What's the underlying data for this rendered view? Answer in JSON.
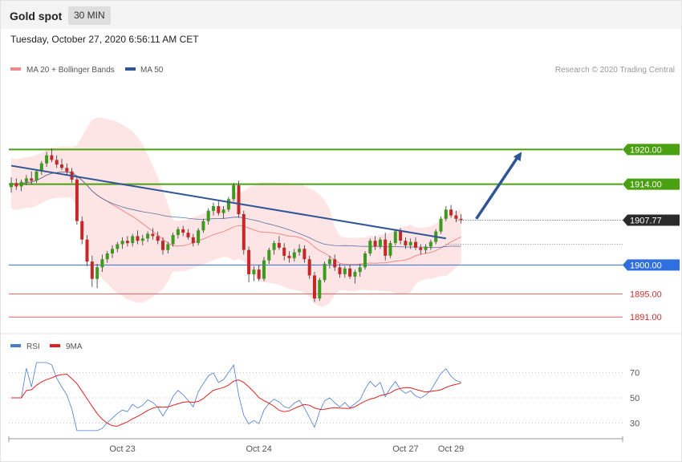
{
  "header": {
    "title": "Gold spot",
    "timeframe": "30 MIN"
  },
  "timestamp": "Tuesday, October 27, 2020 6:56:11 AM CET",
  "legend_main": [
    {
      "label": "MA 20 + Bollinger Bands",
      "color": "#f08a8a"
    },
    {
      "label": "MA 50",
      "color": "#2f5597"
    }
  ],
  "copyright": "Research © 2020 Trading Central",
  "legend_rsi": [
    {
      "label": "RSI",
      "color": "#4a7bd0"
    },
    {
      "label": "9MA",
      "color": "#e02020"
    }
  ],
  "colors": {
    "resistance": "#4aa010",
    "support": "#2f6fe0",
    "minor_support": "#e06060",
    "current": "#2a2a2a",
    "arrow": "#2f5597",
    "band_fill": "#fde0e0"
  },
  "chart_data": {
    "type": "candlestick",
    "levels": [
      {
        "label": "1920.00",
        "value": 1920.0,
        "kind": "resistance"
      },
      {
        "label": "1914.00",
        "value": 1914.0,
        "kind": "resistance"
      },
      {
        "label": "1907.77",
        "value": 1907.77,
        "kind": "current"
      },
      {
        "label": "1900.00",
        "value": 1900.0,
        "kind": "support"
      },
      {
        "label": "1895.00",
        "value": 1895.0,
        "kind": "minor_support"
      },
      {
        "label": "1891.00",
        "value": 1891.0,
        "kind": "minor_support"
      }
    ],
    "price_range": [
      1889.5,
      1932.0
    ],
    "x_labels": [
      {
        "label": "Oct 23",
        "index": 22
      },
      {
        "label": "Oct 24",
        "index": 49
      },
      {
        "label": "Oct 27",
        "index": 78
      },
      {
        "label": "Oct 29",
        "index": 87
      }
    ],
    "bar_count": 90,
    "ohlc": [
      [
        1913.5,
        1915.2,
        1912.5,
        1914.2
      ],
      [
        1914.2,
        1915.0,
        1913.0,
        1913.6
      ],
      [
        1913.6,
        1914.8,
        1912.8,
        1914.4
      ],
      [
        1914.4,
        1915.6,
        1913.8,
        1915.0
      ],
      [
        1915.0,
        1916.2,
        1914.0,
        1914.6
      ],
      [
        1914.6,
        1916.5,
        1914.2,
        1916.2
      ],
      [
        1916.2,
        1918.0,
        1915.6,
        1917.6
      ],
      [
        1917.6,
        1919.6,
        1917.0,
        1919.0
      ],
      [
        1919.0,
        1920.2,
        1917.8,
        1918.2
      ],
      [
        1918.2,
        1919.0,
        1916.8,
        1917.4
      ],
      [
        1917.4,
        1918.4,
        1916.4,
        1916.8
      ],
      [
        1916.8,
        1917.6,
        1915.6,
        1916.2
      ],
      [
        1916.2,
        1916.8,
        1914.2,
        1914.8
      ],
      [
        1914.8,
        1915.4,
        1907.0,
        1907.6
      ],
      [
        1907.6,
        1908.4,
        1903.6,
        1904.4
      ],
      [
        1904.4,
        1905.2,
        1899.8,
        1900.6
      ],
      [
        1900.6,
        1901.6,
        1896.2,
        1897.6
      ],
      [
        1897.6,
        1900.2,
        1896.0,
        1899.6
      ],
      [
        1899.6,
        1901.8,
        1898.8,
        1901.0
      ],
      [
        1901.0,
        1902.4,
        1900.4,
        1902.0
      ],
      [
        1902.0,
        1903.4,
        1901.2,
        1902.8
      ],
      [
        1902.8,
        1904.0,
        1902.2,
        1903.6
      ],
      [
        1903.6,
        1904.8,
        1902.8,
        1904.2
      ],
      [
        1904.2,
        1905.0,
        1903.2,
        1903.8
      ],
      [
        1903.8,
        1905.4,
        1903.2,
        1905.0
      ],
      [
        1905.0,
        1906.0,
        1903.6,
        1904.2
      ],
      [
        1904.2,
        1905.2,
        1903.4,
        1904.6
      ],
      [
        1904.6,
        1905.8,
        1904.0,
        1905.4
      ],
      [
        1905.4,
        1906.4,
        1904.4,
        1905.0
      ],
      [
        1905.0,
        1905.8,
        1903.6,
        1904.2
      ],
      [
        1904.2,
        1904.8,
        1901.8,
        1902.6
      ],
      [
        1902.6,
        1904.0,
        1902.0,
        1903.6
      ],
      [
        1903.6,
        1905.6,
        1903.2,
        1905.2
      ],
      [
        1905.2,
        1906.6,
        1904.6,
        1906.2
      ],
      [
        1906.2,
        1906.8,
        1905.0,
        1905.6
      ],
      [
        1905.6,
        1906.2,
        1904.4,
        1904.8
      ],
      [
        1904.8,
        1905.4,
        1903.2,
        1903.8
      ],
      [
        1903.8,
        1906.4,
        1903.4,
        1906.0
      ],
      [
        1906.0,
        1908.0,
        1905.6,
        1907.6
      ],
      [
        1907.6,
        1909.8,
        1907.0,
        1909.4
      ],
      [
        1909.4,
        1910.8,
        1908.6,
        1910.2
      ],
      [
        1910.2,
        1911.0,
        1908.6,
        1909.0
      ],
      [
        1909.0,
        1910.2,
        1908.0,
        1909.6
      ],
      [
        1909.6,
        1911.8,
        1909.2,
        1911.4
      ],
      [
        1911.4,
        1914.2,
        1911.0,
        1913.8
      ],
      [
        1913.8,
        1914.6,
        1908.2,
        1908.8
      ],
      [
        1908.8,
        1909.4,
        1901.8,
        1902.6
      ],
      [
        1902.6,
        1903.2,
        1897.0,
        1898.4
      ],
      [
        1898.4,
        1899.8,
        1897.2,
        1899.2
      ],
      [
        1899.2,
        1900.0,
        1897.2,
        1897.6
      ],
      [
        1897.6,
        1901.4,
        1897.2,
        1900.8
      ],
      [
        1900.8,
        1903.0,
        1900.2,
        1902.6
      ],
      [
        1902.6,
        1904.2,
        1901.8,
        1903.8
      ],
      [
        1903.8,
        1905.0,
        1902.6,
        1903.0
      ],
      [
        1903.0,
        1903.8,
        1900.8,
        1901.6
      ],
      [
        1901.6,
        1902.4,
        1900.4,
        1901.2
      ],
      [
        1901.2,
        1902.8,
        1900.6,
        1902.2
      ],
      [
        1902.2,
        1903.6,
        1901.6,
        1902.8
      ],
      [
        1902.8,
        1903.4,
        1900.4,
        1901.0
      ],
      [
        1901.0,
        1901.6,
        1897.6,
        1898.2
      ],
      [
        1898.2,
        1898.8,
        1893.6,
        1894.2
      ],
      [
        1894.2,
        1897.8,
        1893.8,
        1897.4
      ],
      [
        1897.4,
        1900.6,
        1897.0,
        1900.2
      ],
      [
        1900.2,
        1901.6,
        1899.4,
        1901.0
      ],
      [
        1901.0,
        1901.8,
        1899.0,
        1899.6
      ],
      [
        1899.6,
        1900.2,
        1897.8,
        1898.4
      ],
      [
        1898.4,
        1899.8,
        1897.8,
        1899.4
      ],
      [
        1899.4,
        1900.0,
        1897.6,
        1898.0
      ],
      [
        1898.0,
        1899.2,
        1896.8,
        1898.8
      ],
      [
        1898.8,
        1900.2,
        1898.0,
        1899.6
      ],
      [
        1899.6,
        1902.4,
        1899.2,
        1902.0
      ],
      [
        1902.0,
        1904.6,
        1901.6,
        1904.2
      ],
      [
        1904.2,
        1905.0,
        1902.6,
        1903.2
      ],
      [
        1903.2,
        1904.8,
        1902.8,
        1904.4
      ],
      [
        1904.4,
        1905.6,
        1900.8,
        1901.6
      ],
      [
        1901.6,
        1904.2,
        1901.2,
        1903.8
      ],
      [
        1903.8,
        1906.2,
        1903.4,
        1905.8
      ],
      [
        1905.8,
        1906.4,
        1903.6,
        1904.2
      ],
      [
        1904.2,
        1904.8,
        1902.8,
        1903.4
      ],
      [
        1903.4,
        1904.6,
        1902.8,
        1904.0
      ],
      [
        1904.0,
        1904.8,
        1902.6,
        1903.0
      ],
      [
        1903.0,
        1903.6,
        1901.8,
        1902.6
      ],
      [
        1902.6,
        1903.6,
        1902.0,
        1903.2
      ],
      [
        1903.2,
        1904.4,
        1902.6,
        1904.0
      ],
      [
        1904.0,
        1906.2,
        1903.6,
        1905.8
      ],
      [
        1905.8,
        1908.4,
        1905.4,
        1908.0
      ],
      [
        1908.0,
        1910.2,
        1907.6,
        1909.6
      ],
      [
        1909.6,
        1910.4,
        1908.2,
        1908.6
      ],
      [
        1908.6,
        1909.4,
        1907.4,
        1908.0
      ],
      [
        1908.0,
        1908.8,
        1907.2,
        1907.8
      ]
    ],
    "trendline": {
      "from": {
        "index": 0,
        "value": 1917.2
      },
      "to": {
        "index": 86,
        "value": 1904.6
      }
    },
    "projection_arrow": {
      "from": {
        "index": 92,
        "value": 1908.0
      },
      "to": {
        "index": 101,
        "value": 1919.6
      }
    },
    "rsi_panel": {
      "ticks": [
        30,
        50,
        70
      ],
      "range": [
        22,
        78
      ]
    }
  }
}
